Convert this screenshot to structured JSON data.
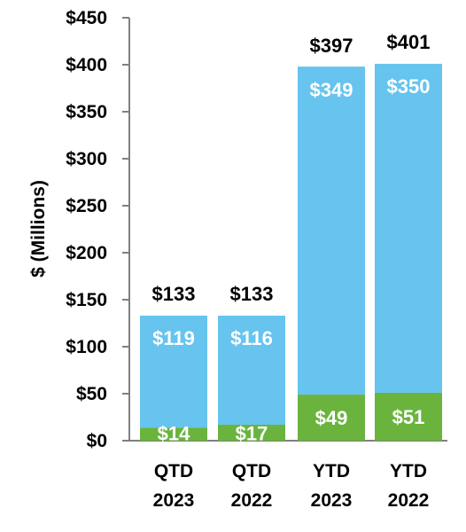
{
  "chart_data": {
    "type": "bar",
    "stacked": true,
    "categories": [
      [
        "QTD",
        "2023"
      ],
      [
        "QTD",
        "2022"
      ],
      [
        "YTD",
        "2023"
      ],
      [
        "YTD",
        "2022"
      ]
    ],
    "series": [
      {
        "values": [
          14,
          17,
          49,
          51
        ],
        "labels": [
          "$14",
          "$17",
          "$49",
          "$51"
        ],
        "color": "#6ab43e"
      },
      {
        "values": [
          119,
          116,
          349,
          350
        ],
        "labels": [
          "$119",
          "$116",
          "$349",
          "$350"
        ],
        "color": "#66c4ef"
      }
    ],
    "totals": [
      133,
      133,
      397,
      401
    ],
    "total_labels": [
      "$133",
      "$133",
      "$397",
      "$401"
    ],
    "ylabel": "$ (Millions)",
    "ylim": [
      0,
      450
    ],
    "yticks": [
      0,
      50,
      100,
      150,
      200,
      250,
      300,
      350,
      400,
      450
    ],
    "ytick_labels": [
      "$0",
      "$50",
      "$100",
      "$150",
      "$200",
      "$250",
      "$300",
      "$350",
      "$400",
      "$450"
    ],
    "grid": false,
    "legend": "none",
    "axis_color": "#808080"
  }
}
